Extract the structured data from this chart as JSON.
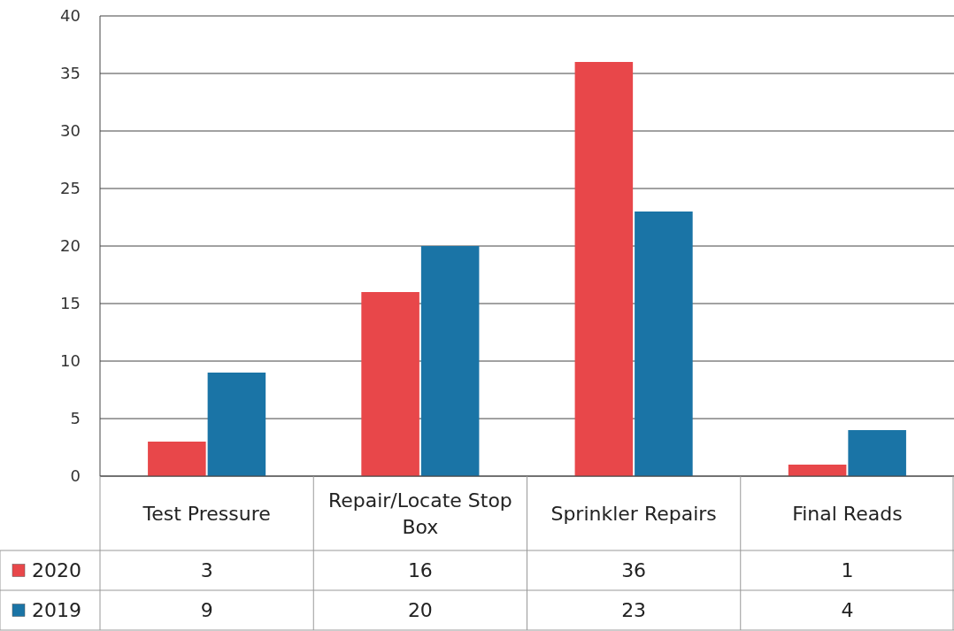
{
  "chart_data": {
    "type": "bar",
    "categories": [
      "Test Pressure",
      "Repair/Locate Stop Box",
      "Sprinkler Repairs",
      "Final Reads"
    ],
    "series": [
      {
        "name": "2020",
        "color": "#e8474a",
        "values": [
          3,
          16,
          36,
          1
        ]
      },
      {
        "name": "2019",
        "color": "#1a74a6",
        "values": [
          9,
          20,
          23,
          4
        ]
      }
    ],
    "ylim": [
      0,
      40
    ],
    "yticks": [
      0,
      5,
      10,
      15,
      20,
      25,
      30,
      35,
      40
    ],
    "grid": "y",
    "data_labels": true,
    "legend": "bottom left"
  }
}
